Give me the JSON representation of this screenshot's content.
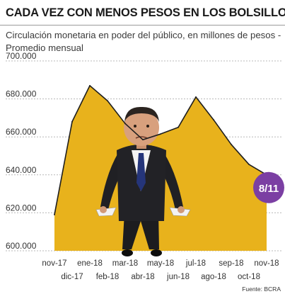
{
  "headline": "CADA VEZ CON MENOS PESOS EN LOS BOLSILLOS",
  "subtitle": "Circulación monetaria en poder del público, en millones de pesos - Promedio mensual",
  "source": "Fuente: BCRA",
  "callout": {
    "label": "8/11",
    "color": "#7b3fa3"
  },
  "colors": {
    "area": "#e8b21c",
    "line": "#1e1e1e",
    "grid": "#b8b8b8"
  },
  "illustration": "man-with-empty-pockets-photo",
  "chart_data": {
    "type": "area",
    "categories": [
      "nov-17",
      "dic-17",
      "ene-18",
      "feb-18",
      "mar-18",
      "abr-18",
      "may-18",
      "jun-18",
      "jul-18",
      "ago-18",
      "sep-18",
      "oct-18",
      "nov-18"
    ],
    "values": [
      619000,
      668000,
      687000,
      679000,
      667000,
      658500,
      661500,
      665000,
      681000,
      669000,
      656000,
      645500,
      640000
    ],
    "ylim": [
      600000,
      700000
    ],
    "yticks": [
      "600.000",
      "620.000",
      "640.000",
      "660.000",
      "680.000",
      "700.000"
    ],
    "ytick_values": [
      600000,
      620000,
      640000,
      660000,
      680000,
      700000
    ],
    "grid": true
  }
}
